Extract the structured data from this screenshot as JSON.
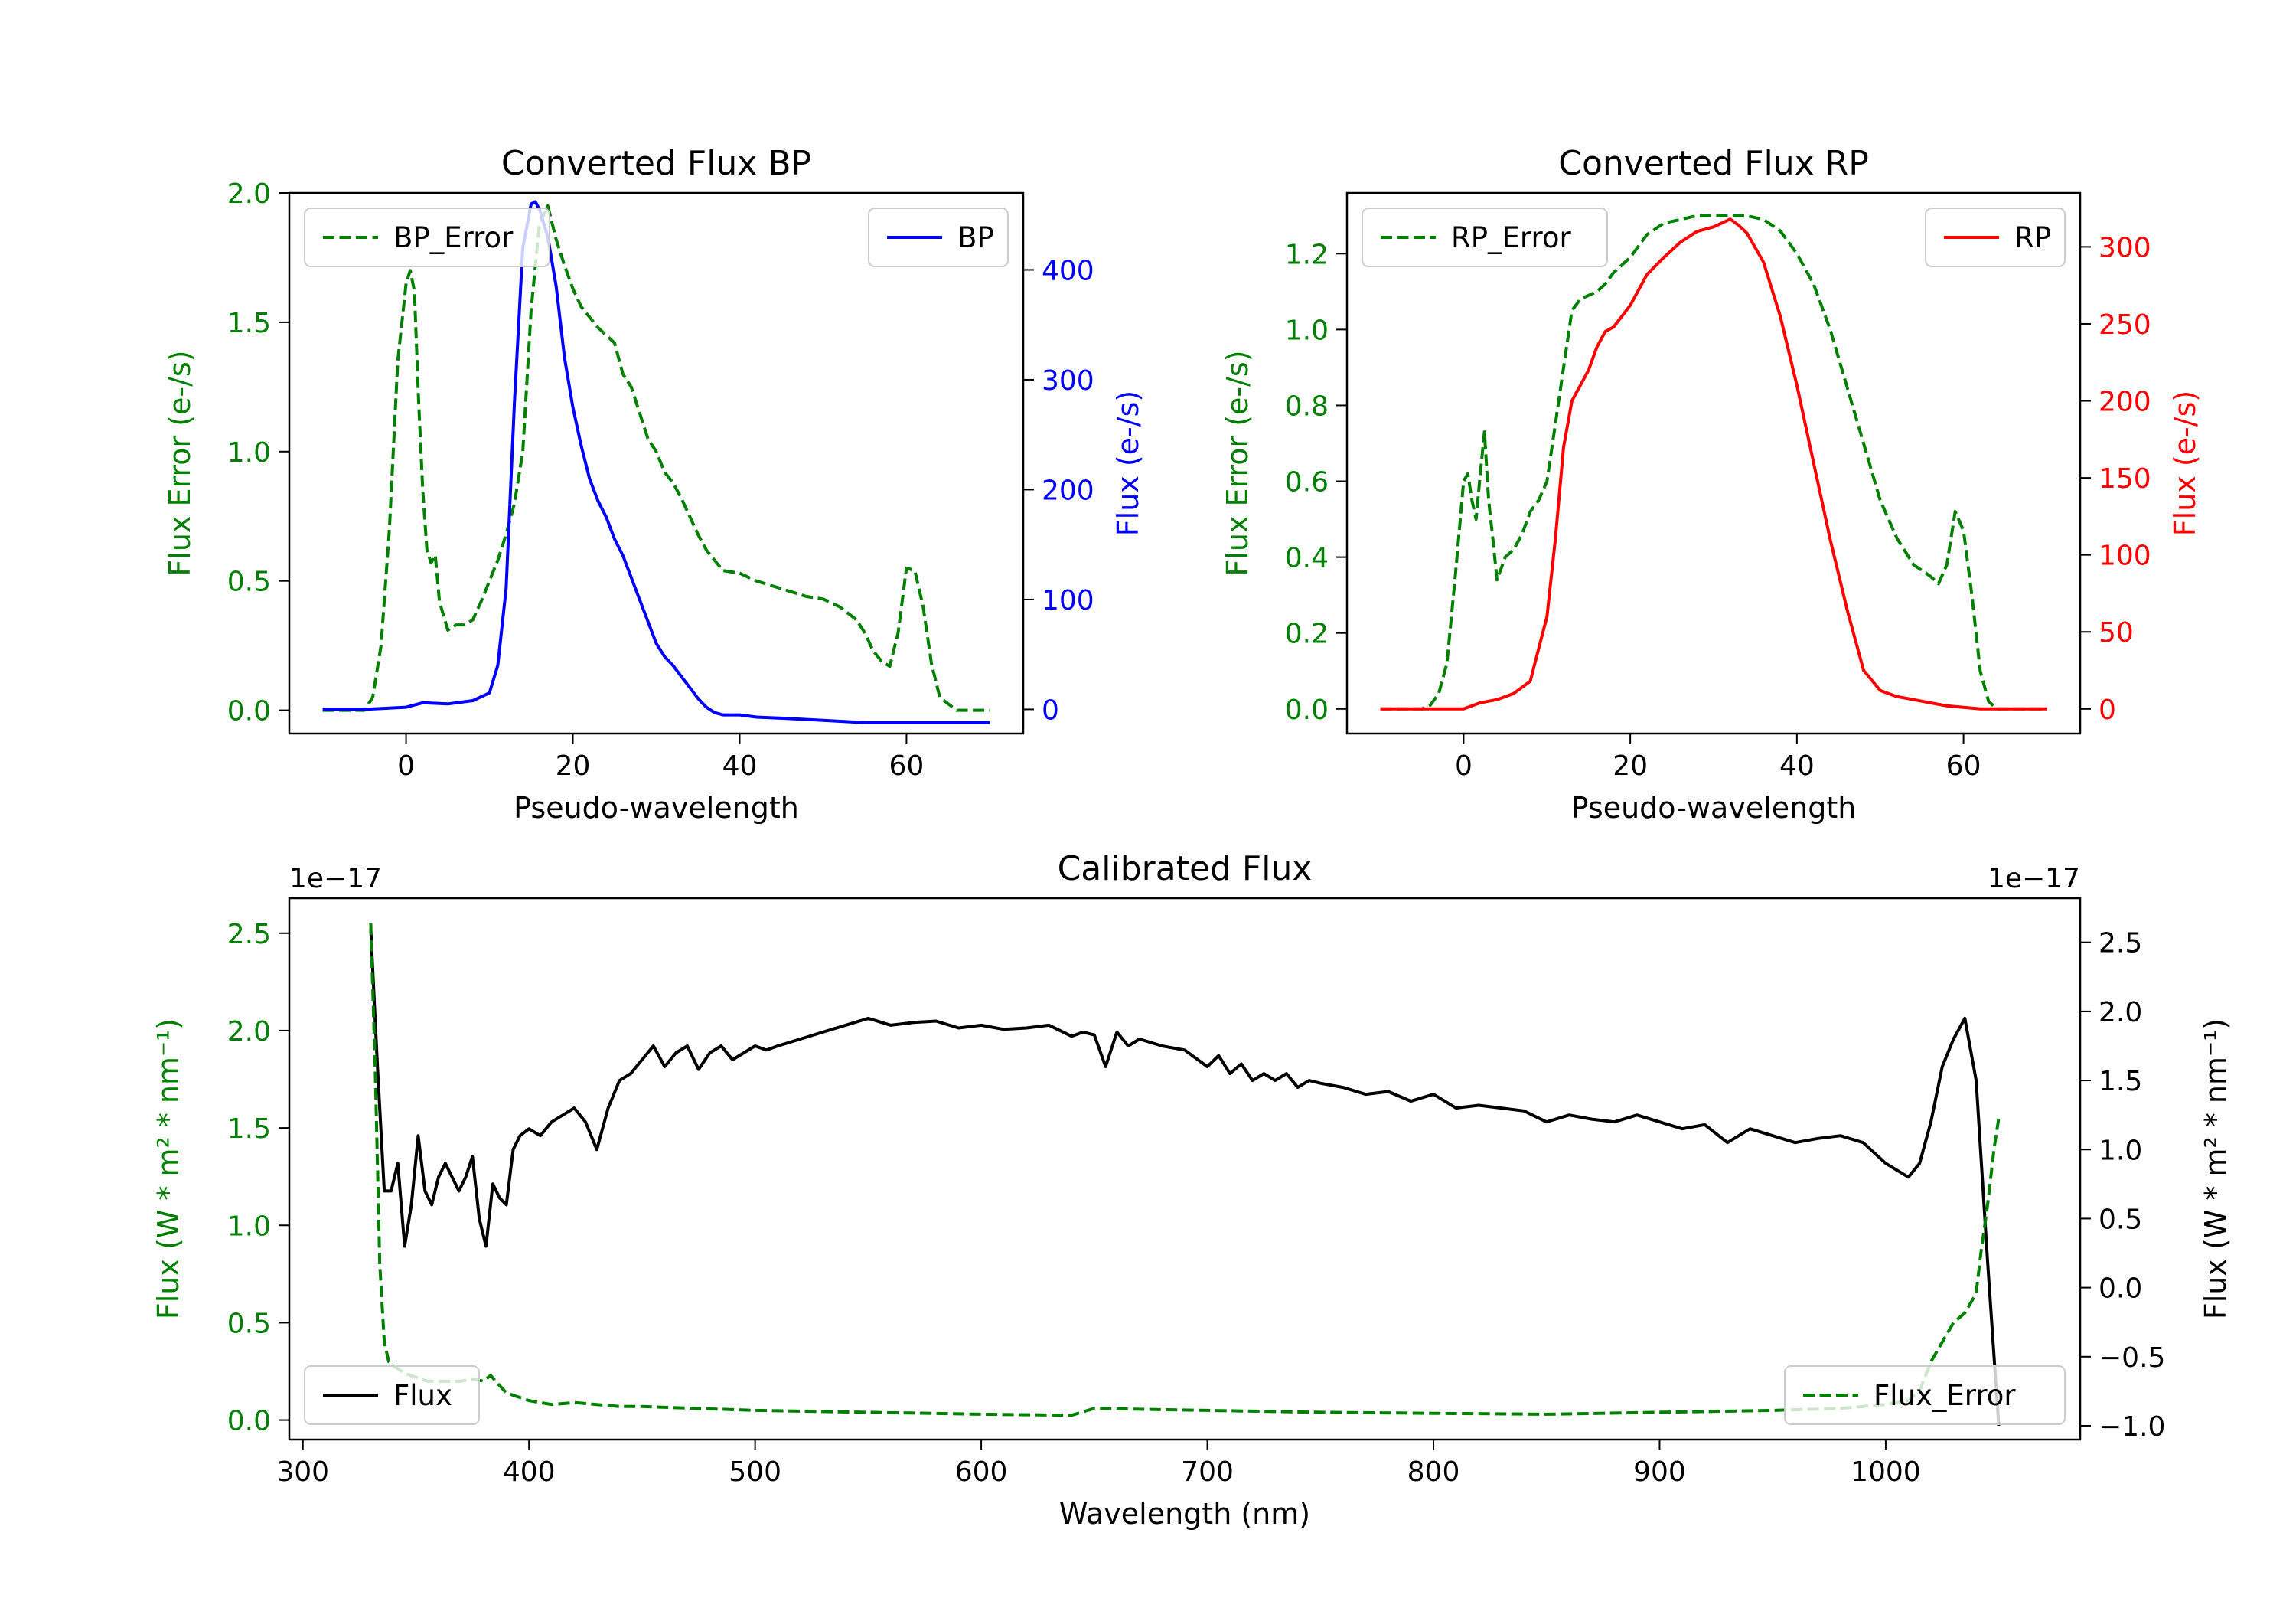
{
  "chart_data": [
    {
      "id": "bp",
      "type": "line",
      "title": "Converted Flux BP",
      "xlabel": "Pseudo-wavelength",
      "ylabel_left": "Flux Error (e-/s)",
      "ylabel_right": "Flux (e-/s)",
      "xlim": [
        -14,
        74
      ],
      "ylim_left": [
        -0.09,
        2.0
      ],
      "ylim_right": [
        -22,
        470
      ],
      "xticks": [
        0,
        20,
        40,
        60
      ],
      "yticks_left": [
        0.0,
        0.5,
        1.0,
        1.5,
        2.0
      ],
      "yticks_right": [
        0,
        100,
        200,
        300,
        400
      ],
      "series": [
        {
          "name": "BP_Error",
          "axis": "left",
          "color": "#008000",
          "dash": "dashed",
          "x": [
            -10,
            -5,
            -4,
            -3,
            -2,
            -1,
            0,
            0.5,
            1,
            1.5,
            2,
            2.5,
            3,
            3.5,
            4,
            5,
            6,
            7,
            8,
            9,
            10,
            11,
            12,
            13,
            14,
            15,
            16,
            17,
            18,
            19,
            20,
            21,
            22,
            23,
            24,
            25,
            26,
            27,
            28,
            29,
            30,
            31,
            32,
            33,
            34,
            35,
            36,
            37,
            38,
            40,
            42,
            45,
            48,
            50,
            52,
            54,
            55,
            56,
            57,
            58,
            59,
            60,
            61,
            62,
            63,
            64,
            66,
            70
          ],
          "y": [
            0.0,
            0.0,
            0.05,
            0.25,
            0.7,
            1.35,
            1.65,
            1.7,
            1.62,
            1.2,
            0.85,
            0.62,
            0.57,
            0.6,
            0.42,
            0.31,
            0.33,
            0.33,
            0.35,
            0.42,
            0.5,
            0.58,
            0.68,
            0.8,
            1.0,
            1.55,
            1.88,
            1.95,
            1.82,
            1.72,
            1.63,
            1.56,
            1.52,
            1.48,
            1.45,
            1.42,
            1.3,
            1.25,
            1.15,
            1.05,
            1.0,
            0.92,
            0.88,
            0.82,
            0.75,
            0.68,
            0.62,
            0.58,
            0.54,
            0.53,
            0.5,
            0.47,
            0.44,
            0.43,
            0.4,
            0.35,
            0.3,
            0.23,
            0.19,
            0.17,
            0.3,
            0.55,
            0.54,
            0.4,
            0.18,
            0.05,
            0.0,
            0.0
          ]
        },
        {
          "name": "BP",
          "axis": "right",
          "color": "#0000ff",
          "dash": "solid",
          "x": [
            -10,
            -5,
            0,
            2,
            5,
            8,
            10,
            11,
            12,
            13,
            14,
            15,
            15.5,
            16,
            17,
            18,
            19,
            20,
            21,
            22,
            23,
            24,
            25,
            26,
            27,
            28,
            29,
            30,
            31,
            32,
            33,
            34,
            35,
            36,
            37,
            38,
            40,
            42,
            45,
            50,
            55,
            60,
            65,
            70
          ],
          "y": [
            0,
            0,
            2,
            6,
            5,
            8,
            15,
            40,
            110,
            280,
            420,
            460,
            462,
            455,
            430,
            385,
            320,
            275,
            240,
            210,
            190,
            175,
            155,
            140,
            120,
            100,
            80,
            60,
            48,
            40,
            30,
            20,
            10,
            2,
            -3,
            -5,
            -5,
            -7,
            -8,
            -10,
            -12,
            -12,
            -12,
            -12
          ]
        }
      ],
      "legend": [
        {
          "label": "BP_Error",
          "position": "top-left"
        },
        {
          "label": "BP",
          "position": "top-right"
        }
      ]
    },
    {
      "id": "rp",
      "type": "line",
      "title": "Converted Flux RP",
      "xlabel": "Pseudo-wavelength",
      "ylabel_left": "Flux Error (e-/s)",
      "ylabel_right": "Flux (e-/s)",
      "xlim": [
        -14,
        74
      ],
      "ylim_left": [
        -0.065,
        1.36
      ],
      "ylim_right": [
        -16,
        335
      ],
      "xticks": [
        0,
        20,
        40,
        60
      ],
      "yticks_left": [
        0.0,
        0.2,
        0.4,
        0.6,
        0.8,
        1.0,
        1.2
      ],
      "yticks_right": [
        0,
        50,
        100,
        150,
        200,
        250,
        300
      ],
      "series": [
        {
          "name": "RP_Error",
          "axis": "left",
          "color": "#008000",
          "dash": "dashed",
          "x": [
            -10,
            -5,
            -4,
            -3,
            -2,
            -1,
            0,
            0.5,
            1,
            1.5,
            2,
            2.5,
            3,
            3.5,
            4,
            5,
            6,
            7,
            8,
            9,
            10,
            11,
            12,
            13,
            14,
            15,
            16,
            17,
            18,
            20,
            22,
            24,
            26,
            28,
            30,
            32,
            34,
            36,
            38,
            40,
            42,
            44,
            46,
            48,
            50,
            52,
            54,
            56,
            57,
            58,
            59,
            60,
            61,
            62,
            63,
            64,
            66,
            70
          ],
          "y": [
            0.0,
            0.0,
            0.01,
            0.04,
            0.12,
            0.35,
            0.6,
            0.62,
            0.55,
            0.5,
            0.62,
            0.73,
            0.55,
            0.45,
            0.34,
            0.4,
            0.42,
            0.46,
            0.52,
            0.55,
            0.6,
            0.75,
            0.9,
            1.05,
            1.08,
            1.09,
            1.1,
            1.12,
            1.15,
            1.19,
            1.25,
            1.28,
            1.29,
            1.3,
            1.3,
            1.3,
            1.3,
            1.29,
            1.26,
            1.2,
            1.12,
            1.0,
            0.85,
            0.7,
            0.55,
            0.45,
            0.38,
            0.35,
            0.33,
            0.38,
            0.52,
            0.47,
            0.3,
            0.1,
            0.02,
            0.0,
            0.0,
            0.0
          ]
        },
        {
          "name": "RP",
          "axis": "right",
          "color": "#ff0000",
          "dash": "solid",
          "x": [
            -10,
            -5,
            0,
            2,
            4,
            6,
            8,
            10,
            11,
            12,
            13,
            14,
            15,
            16,
            17,
            18,
            20,
            22,
            24,
            26,
            28,
            30,
            32,
            33,
            34,
            36,
            38,
            40,
            42,
            44,
            46,
            48,
            50,
            52,
            54,
            56,
            58,
            60,
            62,
            65,
            70
          ],
          "y": [
            0,
            0,
            0,
            4,
            6,
            10,
            18,
            60,
            110,
            170,
            200,
            210,
            220,
            235,
            245,
            248,
            262,
            282,
            293,
            303,
            310,
            313,
            318,
            314,
            309,
            290,
            255,
            210,
            160,
            110,
            65,
            25,
            12,
            8,
            6,
            4,
            2,
            1,
            0,
            0,
            0
          ]
        }
      ],
      "legend": [
        {
          "label": "RP_Error",
          "position": "top-left"
        },
        {
          "label": "RP",
          "position": "top-right"
        }
      ]
    },
    {
      "id": "cal",
      "type": "line",
      "title": "Calibrated Flux",
      "xlabel": "Wavelength (nm)",
      "ylabel_left": "Flux (W * m² * nm⁻¹)",
      "ylabel_right": "Flux (W * m² * nm⁻¹)",
      "offset_left": "1e−17",
      "offset_right": "1e−17",
      "xlim": [
        294,
        1086
      ],
      "ylim_left": [
        -0.1,
        2.68
      ],
      "ylim_right": [
        -1.1,
        2.82
      ],
      "xticks": [
        300,
        400,
        500,
        600,
        700,
        800,
        900,
        1000
      ],
      "yticks_left": [
        0.0,
        0.5,
        1.0,
        1.5,
        2.0,
        2.5
      ],
      "yticks_right": [
        -1.0,
        -0.5,
        0.0,
        0.5,
        1.0,
        1.5,
        2.0,
        2.5
      ],
      "series": [
        {
          "name": "Flux",
          "axis": "right",
          "color": "#000000",
          "dash": "solid",
          "x": [
            330,
            333,
            336,
            339,
            342,
            345,
            348,
            351,
            354,
            357,
            360,
            363,
            366,
            369,
            372,
            375,
            378,
            381,
            384,
            387,
            390,
            393,
            396,
            400,
            405,
            410,
            415,
            420,
            425,
            430,
            435,
            440,
            445,
            450,
            455,
            460,
            465,
            470,
            475,
            480,
            485,
            490,
            495,
            500,
            505,
            510,
            520,
            530,
            540,
            550,
            560,
            570,
            580,
            590,
            600,
            610,
            620,
            630,
            640,
            645,
            650,
            655,
            660,
            665,
            670,
            680,
            690,
            700,
            705,
            710,
            715,
            720,
            725,
            730,
            735,
            740,
            745,
            750,
            760,
            770,
            780,
            790,
            800,
            810,
            820,
            830,
            840,
            850,
            860,
            870,
            880,
            890,
            900,
            910,
            920,
            930,
            940,
            950,
            960,
            970,
            980,
            990,
            1000,
            1005,
            1010,
            1015,
            1020,
            1025,
            1030,
            1035,
            1040,
            1045,
            1050
          ],
          "y": [
            2.6,
            1.6,
            0.7,
            0.7,
            0.9,
            0.3,
            0.6,
            1.1,
            0.7,
            0.6,
            0.8,
            0.9,
            0.8,
            0.7,
            0.8,
            0.95,
            0.5,
            0.3,
            0.75,
            0.65,
            0.6,
            1.0,
            1.1,
            1.15,
            1.1,
            1.2,
            1.25,
            1.3,
            1.2,
            1.0,
            1.3,
            1.5,
            1.55,
            1.65,
            1.75,
            1.6,
            1.7,
            1.75,
            1.58,
            1.7,
            1.75,
            1.65,
            1.7,
            1.75,
            1.72,
            1.75,
            1.8,
            1.85,
            1.9,
            1.95,
            1.9,
            1.92,
            1.93,
            1.88,
            1.9,
            1.87,
            1.88,
            1.9,
            1.82,
            1.85,
            1.83,
            1.6,
            1.85,
            1.75,
            1.8,
            1.75,
            1.72,
            1.6,
            1.68,
            1.55,
            1.62,
            1.5,
            1.55,
            1.5,
            1.55,
            1.45,
            1.5,
            1.48,
            1.45,
            1.4,
            1.42,
            1.35,
            1.4,
            1.3,
            1.32,
            1.3,
            1.28,
            1.2,
            1.25,
            1.22,
            1.2,
            1.25,
            1.2,
            1.15,
            1.18,
            1.05,
            1.15,
            1.1,
            1.05,
            1.08,
            1.1,
            1.05,
            0.9,
            0.85,
            0.8,
            0.9,
            1.2,
            1.6,
            1.8,
            1.95,
            1.5,
            0.2,
            -1.0
          ]
        },
        {
          "name": "Flux_Error",
          "axis": "left",
          "color": "#008000",
          "dash": "dashed",
          "x": [
            330,
            332,
            334,
            336,
            338,
            340,
            345,
            350,
            355,
            360,
            365,
            370,
            375,
            380,
            383,
            386,
            390,
            395,
            400,
            410,
            420,
            430,
            440,
            450,
            500,
            550,
            600,
            640,
            650,
            700,
            750,
            800,
            850,
            900,
            950,
            980,
            1000,
            1010,
            1015,
            1020,
            1025,
            1030,
            1035,
            1040,
            1042,
            1045,
            1048,
            1050
          ],
          "y": [
            2.55,
            1.8,
            0.8,
            0.4,
            0.3,
            0.28,
            0.24,
            0.22,
            0.2,
            0.2,
            0.2,
            0.2,
            0.21,
            0.2,
            0.23,
            0.19,
            0.14,
            0.12,
            0.1,
            0.08,
            0.09,
            0.08,
            0.07,
            0.07,
            0.05,
            0.04,
            0.03,
            0.025,
            0.06,
            0.05,
            0.04,
            0.035,
            0.03,
            0.04,
            0.05,
            0.06,
            0.08,
            0.1,
            0.15,
            0.3,
            0.4,
            0.5,
            0.55,
            0.65,
            0.85,
            1.1,
            1.4,
            1.55
          ]
        }
      ],
      "legend": [
        {
          "label": "Flux",
          "position": "bottom-left"
        },
        {
          "label": "Flux_Error",
          "position": "bottom-right"
        }
      ]
    }
  ]
}
